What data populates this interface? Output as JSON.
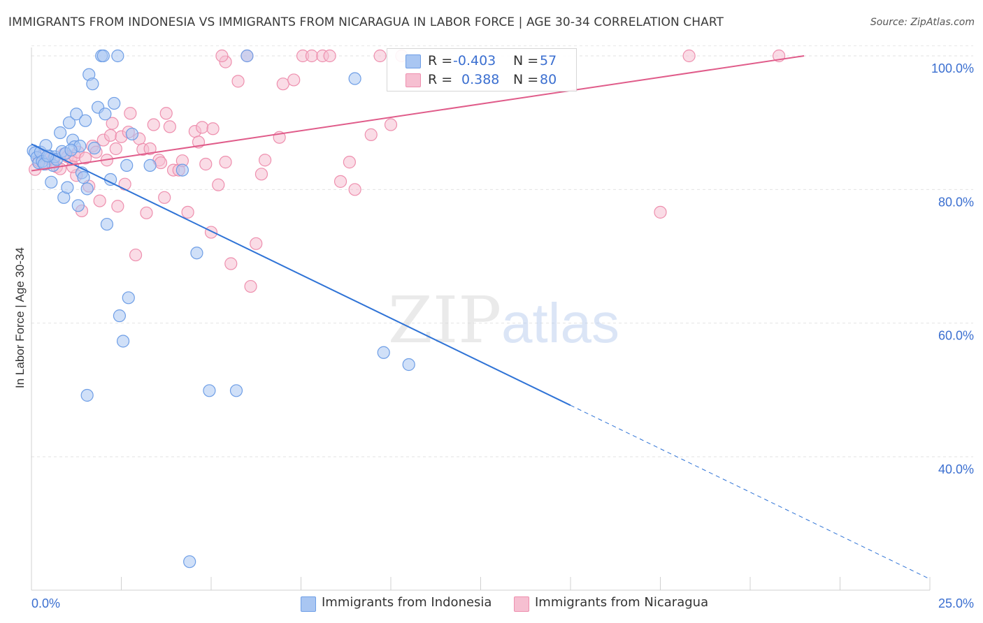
{
  "title": "IMMIGRANTS FROM INDONESIA VS IMMIGRANTS FROM NICARAGUA IN LABOR FORCE | AGE 30-34 CORRELATION CHART",
  "source": "Source: ZipAtlas.com",
  "watermark": {
    "zip": "ZIP",
    "atlas": "atlas"
  },
  "legend": {
    "r_label": "R =",
    "n_label": "N =",
    "rows": [
      {
        "r": "-0.403",
        "n": "57"
      },
      {
        "r": "0.388",
        "n": "80"
      }
    ]
  },
  "chart_data": {
    "type": "scatter",
    "title": "IMMIGRANTS FROM INDONESIA VS IMMIGRANTS FROM NICARAGUA IN LABOR FORCE | AGE 30-34 CORRELATION CHART",
    "xlabel": "",
    "ylabel": "In Labor Force | Age 30-34",
    "xlim": [
      0,
      25
    ],
    "ylim": [
      22,
      102
    ],
    "x_tick_labels": [
      "0.0%",
      "25.0%"
    ],
    "y_ticks": [
      40,
      60,
      80,
      100
    ],
    "y_tick_labels": [
      "40.0%",
      "60.0%",
      "80.0%",
      "100.0%"
    ],
    "grid": true,
    "legend_position": "top-center",
    "series": [
      {
        "name": "Immigrants from Indonesia",
        "color": "#6e9ee6",
        "fill": "#a9c6f2",
        "r": -0.403,
        "n": 57,
        "trend": {
          "x0": 0,
          "y0": 86.8,
          "x1": 15,
          "y1": 47.7,
          "dash_to_x": 25,
          "dash_to_y": 21.7,
          "color": "#2f73d6"
        },
        "points": [
          [
            0.05,
            85.8
          ],
          [
            0.1,
            85.5
          ],
          [
            0.15,
            84.8
          ],
          [
            0.2,
            84.0
          ],
          [
            0.25,
            85.6
          ],
          [
            0.3,
            84.2
          ],
          [
            0.4,
            86.6
          ],
          [
            0.5,
            85.0
          ],
          [
            0.55,
            81.1
          ],
          [
            0.6,
            83.6
          ],
          [
            0.65,
            84.9
          ],
          [
            0.7,
            84.5
          ],
          [
            0.8,
            88.5
          ],
          [
            0.85,
            85.7
          ],
          [
            0.9,
            78.8
          ],
          [
            0.95,
            85.4
          ],
          [
            1.0,
            80.3
          ],
          [
            1.05,
            90.0
          ],
          [
            1.15,
            87.4
          ],
          [
            1.2,
            86.4
          ],
          [
            1.25,
            91.3
          ],
          [
            1.3,
            77.6
          ],
          [
            1.35,
            86.5
          ],
          [
            1.4,
            82.5
          ],
          [
            1.45,
            81.8
          ],
          [
            1.5,
            90.3
          ],
          [
            1.55,
            80.1
          ],
          [
            1.6,
            97.2
          ],
          [
            1.7,
            95.8
          ],
          [
            1.75,
            86.2
          ],
          [
            1.85,
            92.3
          ],
          [
            1.95,
            100.0
          ],
          [
            2.0,
            100.0
          ],
          [
            2.05,
            91.3
          ],
          [
            2.1,
            74.8
          ],
          [
            2.2,
            81.5
          ],
          [
            2.3,
            92.9
          ],
          [
            2.4,
            100.0
          ],
          [
            2.45,
            61.1
          ],
          [
            2.55,
            57.3
          ],
          [
            2.65,
            83.6
          ],
          [
            2.7,
            63.8
          ],
          [
            2.8,
            88.3
          ],
          [
            1.55,
            49.2
          ],
          [
            3.3,
            83.6
          ],
          [
            4.2,
            82.9
          ],
          [
            4.4,
            24.3
          ],
          [
            4.6,
            70.5
          ],
          [
            4.95,
            49.9
          ],
          [
            5.7,
            49.9
          ],
          [
            6.0,
            100.0
          ],
          [
            9.0,
            96.6
          ],
          [
            9.8,
            55.6
          ],
          [
            10.5,
            53.8
          ],
          [
            0.35,
            83.8
          ],
          [
            0.45,
            85.0
          ],
          [
            1.1,
            85.9
          ]
        ]
      },
      {
        "name": "Immigrants from Nicaragua",
        "color": "#ee8fae",
        "fill": "#f6bfd1",
        "r": 0.388,
        "n": 80,
        "trend": {
          "x0": 0,
          "y0": 82.8,
          "x1": 21.5,
          "y1": 100.0,
          "color": "#e05c8a"
        },
        "points": [
          [
            0.1,
            83.0
          ],
          [
            0.2,
            84.3
          ],
          [
            0.3,
            85.1
          ],
          [
            0.4,
            83.8
          ],
          [
            0.5,
            84.6
          ],
          [
            0.6,
            84.5
          ],
          [
            0.7,
            83.4
          ],
          [
            0.8,
            83.1
          ],
          [
            0.9,
            85.3
          ],
          [
            1.0,
            84.9
          ],
          [
            1.1,
            84.6
          ],
          [
            1.2,
            85.0
          ],
          [
            1.25,
            82.1
          ],
          [
            1.3,
            85.6
          ],
          [
            1.4,
            76.8
          ],
          [
            1.5,
            84.7
          ],
          [
            1.6,
            80.5
          ],
          [
            1.7,
            86.5
          ],
          [
            1.8,
            85.6
          ],
          [
            1.9,
            78.3
          ],
          [
            2.0,
            87.4
          ],
          [
            2.1,
            84.4
          ],
          [
            2.2,
            88.1
          ],
          [
            2.25,
            89.9
          ],
          [
            2.35,
            86.1
          ],
          [
            2.4,
            77.5
          ],
          [
            2.5,
            87.9
          ],
          [
            2.6,
            80.8
          ],
          [
            2.7,
            88.6
          ],
          [
            2.75,
            91.4
          ],
          [
            2.9,
            70.2
          ],
          [
            3.0,
            87.6
          ],
          [
            3.1,
            86.0
          ],
          [
            3.2,
            76.5
          ],
          [
            3.3,
            86.1
          ],
          [
            3.4,
            89.7
          ],
          [
            3.55,
            84.4
          ],
          [
            3.6,
            84.0
          ],
          [
            3.7,
            78.8
          ],
          [
            3.75,
            91.4
          ],
          [
            3.85,
            89.4
          ],
          [
            3.95,
            82.9
          ],
          [
            4.1,
            82.9
          ],
          [
            4.2,
            84.3
          ],
          [
            4.35,
            76.6
          ],
          [
            4.55,
            88.7
          ],
          [
            4.65,
            87.1
          ],
          [
            4.75,
            89.3
          ],
          [
            4.85,
            83.8
          ],
          [
            5.0,
            73.6
          ],
          [
            5.05,
            89.1
          ],
          [
            5.2,
            80.7
          ],
          [
            5.4,
            84.1
          ],
          [
            5.55,
            68.9
          ],
          [
            5.75,
            96.2
          ],
          [
            6.0,
            100.0
          ],
          [
            6.1,
            65.5
          ],
          [
            6.25,
            71.9
          ],
          [
            6.4,
            82.3
          ],
          [
            6.5,
            84.4
          ],
          [
            6.9,
            87.8
          ],
          [
            7.0,
            95.8
          ],
          [
            7.3,
            96.4
          ],
          [
            7.55,
            100.0
          ],
          [
            7.8,
            100.0
          ],
          [
            8.1,
            100.0
          ],
          [
            8.3,
            100.0
          ],
          [
            8.6,
            81.2
          ],
          [
            8.85,
            84.1
          ],
          [
            9.0,
            80.0
          ],
          [
            9.45,
            88.2
          ],
          [
            9.7,
            100.0
          ],
          [
            10.0,
            89.7
          ],
          [
            10.3,
            100.0
          ],
          [
            5.4,
            99.1
          ],
          [
            5.3,
            100.0
          ],
          [
            17.5,
            76.6
          ],
          [
            18.3,
            100.0
          ],
          [
            20.8,
            100.0
          ],
          [
            1.15,
            83.4
          ]
        ]
      }
    ]
  }
}
